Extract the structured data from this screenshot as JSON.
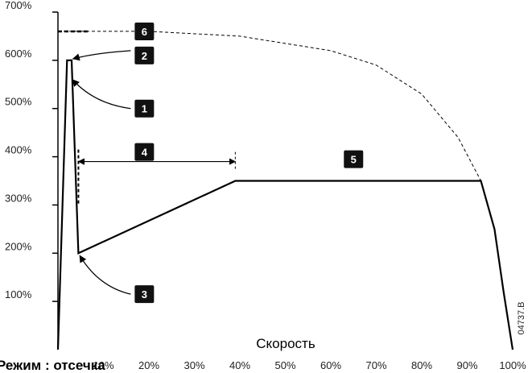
{
  "chart_data": {
    "type": "line",
    "xlabel": "Скорость",
    "x_ticks": [
      "10%",
      "20%",
      "30%",
      "40%",
      "50%",
      "60%",
      "70%",
      "80%",
      "90%",
      "100%"
    ],
    "y_ticks": [
      "100%",
      "200%",
      "300%",
      "400%",
      "500%",
      "600%",
      "700%"
    ],
    "xlim": [
      0,
      100
    ],
    "ylim": [
      0,
      700
    ],
    "series": [
      {
        "style": "solid",
        "x": [
          0,
          2,
          3,
          4.5,
          39,
          93,
          96,
          98,
          100
        ],
        "y": [
          0,
          600,
          600,
          200,
          350,
          350,
          250,
          120,
          0
        ]
      },
      {
        "style": "dashed",
        "x": [
          0,
          20,
          40,
          60,
          70,
          80,
          88,
          93
        ],
        "y": [
          660,
          660,
          650,
          620,
          590,
          530,
          440,
          350
        ]
      }
    ],
    "markers": [
      {
        "label": "6",
        "x": 19,
        "y": 660
      },
      {
        "label": "2",
        "x": 19,
        "y": 610
      },
      {
        "label": "1",
        "x": 19,
        "y": 500
      },
      {
        "label": "4",
        "x": 19,
        "y": 410
      },
      {
        "label": "5",
        "x": 65,
        "y": 395
      },
      {
        "label": "3",
        "x": 19,
        "y": 115
      }
    ],
    "figure_code": "04737.B",
    "caption": "Режим : отсечка"
  }
}
